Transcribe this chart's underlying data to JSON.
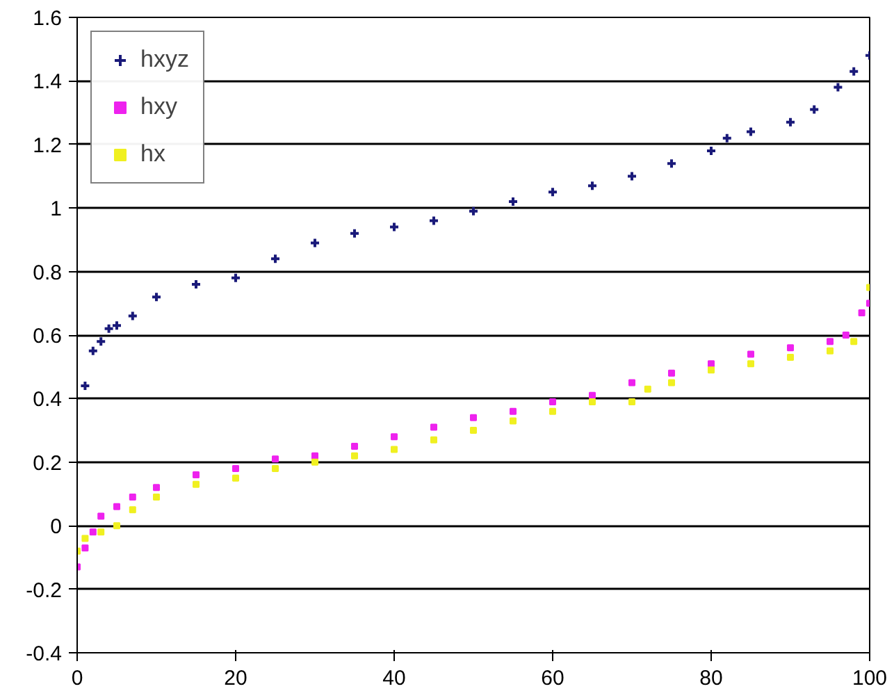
{
  "chart_data": {
    "type": "scatter",
    "xlim": [
      0,
      100
    ],
    "xticks": [
      0,
      20,
      40,
      60,
      80,
      100
    ],
    "ylim": [
      -0.4,
      1.6
    ],
    "yticks": [
      -0.4,
      -0.2,
      0,
      0.2,
      0.4,
      0.6,
      0.8,
      1,
      1.2,
      1.4,
      1.6
    ],
    "grid": "y",
    "legend": "top left",
    "series": [
      {
        "name": "hxyz",
        "color": "#1a1a7a",
        "marker": "cross",
        "x": [
          1,
          2,
          3,
          4,
          5,
          7,
          10,
          15,
          20,
          25,
          30,
          35,
          40,
          45,
          50,
          55,
          60,
          65,
          70,
          75,
          80,
          82,
          85,
          90,
          93,
          96,
          98,
          100
        ],
        "values": [
          0.44,
          0.55,
          0.58,
          0.62,
          0.63,
          0.66,
          0.72,
          0.76,
          0.78,
          0.84,
          0.89,
          0.92,
          0.94,
          0.96,
          0.99,
          1.02,
          1.05,
          1.07,
          1.1,
          1.14,
          1.18,
          1.22,
          1.24,
          1.27,
          1.31,
          1.38,
          1.43,
          1.48
        ]
      },
      {
        "name": "hxy",
        "color": "#ee22ee",
        "marker": "square",
        "x": [
          0,
          1,
          2,
          3,
          5,
          7,
          10,
          15,
          20,
          25,
          30,
          35,
          40,
          45,
          50,
          55,
          60,
          65,
          70,
          75,
          80,
          85,
          90,
          95,
          97,
          99,
          100
        ],
        "values": [
          -0.13,
          -0.07,
          -0.02,
          0.03,
          0.06,
          0.09,
          0.12,
          0.16,
          0.18,
          0.21,
          0.22,
          0.25,
          0.28,
          0.31,
          0.34,
          0.36,
          0.39,
          0.41,
          0.45,
          0.48,
          0.51,
          0.54,
          0.56,
          0.58,
          0.6,
          0.67,
          0.7
        ]
      },
      {
        "name": "hx",
        "color": "#f0f020",
        "marker": "square",
        "x": [
          0,
          1,
          3,
          5,
          7,
          10,
          15,
          20,
          25,
          30,
          35,
          40,
          45,
          50,
          55,
          60,
          65,
          70,
          72,
          75,
          80,
          85,
          90,
          95,
          98,
          100
        ],
        "values": [
          -0.08,
          -0.04,
          -0.02,
          0.0,
          0.05,
          0.09,
          0.13,
          0.15,
          0.18,
          0.2,
          0.22,
          0.24,
          0.27,
          0.3,
          0.33,
          0.36,
          0.39,
          0.39,
          0.43,
          0.45,
          0.49,
          0.51,
          0.53,
          0.55,
          0.58,
          0.75
        ]
      }
    ]
  }
}
